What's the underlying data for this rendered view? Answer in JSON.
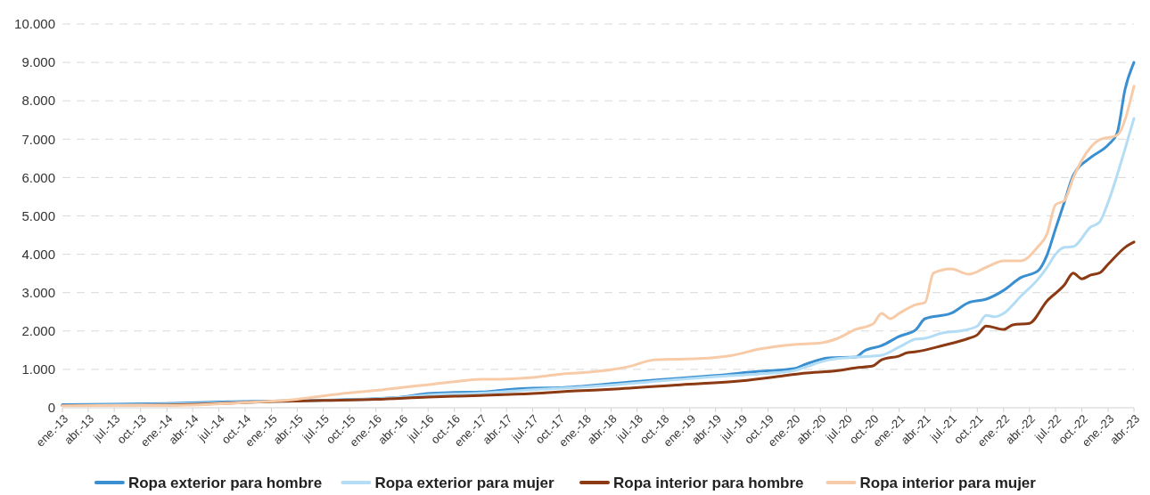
{
  "chart_data": {
    "type": "line",
    "xlim": [
      "2013-01",
      "2023-04"
    ],
    "xticks": [
      {
        "value": "2013-01",
        "label": "ene.-13"
      },
      {
        "value": "2013-04",
        "label": "abr.-13"
      },
      {
        "value": "2013-07",
        "label": "jul.-13"
      },
      {
        "value": "2013-10",
        "label": "oct.-13"
      },
      {
        "value": "2014-01",
        "label": "ene.-14"
      },
      {
        "value": "2014-04",
        "label": "abr.-14"
      },
      {
        "value": "2014-07",
        "label": "jul.-14"
      },
      {
        "value": "2014-10",
        "label": "oct.-14"
      },
      {
        "value": "2015-01",
        "label": "ene.-15"
      },
      {
        "value": "2015-04",
        "label": "abr.-15"
      },
      {
        "value": "2015-07",
        "label": "jul.-15"
      },
      {
        "value": "2015-10",
        "label": "oct.-15"
      },
      {
        "value": "2016-01",
        "label": "ene.-16"
      },
      {
        "value": "2016-04",
        "label": "abr.-16"
      },
      {
        "value": "2016-07",
        "label": "jul.-16"
      },
      {
        "value": "2016-10",
        "label": "oct.-16"
      },
      {
        "value": "2017-01",
        "label": "ene.-17"
      },
      {
        "value": "2017-04",
        "label": "abr.-17"
      },
      {
        "value": "2017-07",
        "label": "jul.-17"
      },
      {
        "value": "2017-10",
        "label": "oct.-17"
      },
      {
        "value": "2018-01",
        "label": "ene.-18"
      },
      {
        "value": "2018-04",
        "label": "abr.-18"
      },
      {
        "value": "2018-07",
        "label": "jul.-18"
      },
      {
        "value": "2018-10",
        "label": "oct.-18"
      },
      {
        "value": "2019-01",
        "label": "ene.-19"
      },
      {
        "value": "2019-04",
        "label": "abr.-19"
      },
      {
        "value": "2019-07",
        "label": "jul.-19"
      },
      {
        "value": "2019-10",
        "label": "oct.-19"
      },
      {
        "value": "2020-01",
        "label": "ene.-20"
      },
      {
        "value": "2020-04",
        "label": "abr.-20"
      },
      {
        "value": "2020-07",
        "label": "jul.-20"
      },
      {
        "value": "2020-10",
        "label": "oct.-20"
      },
      {
        "value": "2021-01",
        "label": "ene.-21"
      },
      {
        "value": "2021-04",
        "label": "abr.-21"
      },
      {
        "value": "2021-07",
        "label": "jul.-21"
      },
      {
        "value": "2021-10",
        "label": "oct.-21"
      },
      {
        "value": "2022-01",
        "label": "ene.-22"
      },
      {
        "value": "2022-04",
        "label": "abr.-22"
      },
      {
        "value": "2022-07",
        "label": "jul.-22"
      },
      {
        "value": "2022-10",
        "label": "oct.-22"
      },
      {
        "value": "2023-01",
        "label": "ene.-23"
      },
      {
        "value": "2023-04",
        "label": "abr.-23"
      }
    ],
    "ylim": [
      0,
      10000
    ],
    "yticks": [
      0,
      {
        "value": 1000,
        "label": "1.000"
      },
      {
        "value": 2000,
        "label": "2.000"
      },
      {
        "value": 3000,
        "label": "3.000"
      },
      {
        "value": 4000,
        "label": "4.000"
      },
      {
        "value": 5000,
        "label": "5.000"
      },
      {
        "value": 6000,
        "label": "6.000"
      },
      {
        "value": 7000,
        "label": "7.000"
      },
      {
        "value": 8000,
        "label": "8.000"
      },
      {
        "value": 9000,
        "label": "9.000"
      },
      {
        "value": 10000,
        "label": "10.000"
      }
    ],
    "grid": "y",
    "legend": "bottom",
    "line_style": "solid",
    "series": [
      {
        "name": "Ropa exterior para hombre",
        "color": "#3a8fd0",
        "x": [
          "2013-01",
          "2013-07",
          "2014-01",
          "2014-07",
          "2016-01",
          "2016-04",
          "2016-07",
          "2016-10",
          "2017-01",
          "2017-04",
          "2017-07",
          "2017-10",
          "2017-12",
          "2018-06",
          "2018-12",
          "2019-04",
          "2019-09",
          "2020-01",
          "2020-02",
          "2020-05",
          "2020-08",
          "2020-09",
          "2020-11",
          "2021-01",
          "2021-03",
          "2021-04",
          "2021-07",
          "2021-09",
          "2021-11",
          "2022-01",
          "2022-03",
          "2022-05",
          "2022-06",
          "2022-07",
          "2022-08",
          "2022-09",
          "2022-11",
          "2023-01",
          "2023-02",
          "2023-03",
          "2023-04"
        ],
        "values": [
          80,
          90,
          110,
          150,
          240,
          280,
          370,
          400,
          410,
          470,
          510,
          520,
          550,
          670,
          770,
          840,
          950,
          1020,
          1110,
          1300,
          1320,
          1480,
          1620,
          1860,
          2040,
          2320,
          2460,
          2740,
          2830,
          3060,
          3390,
          3570,
          3970,
          4660,
          5360,
          6050,
          6520,
          6850,
          7150,
          8300,
          9000
        ]
      },
      {
        "name": "Ropa exterior para mujer",
        "color": "#b3dcf5",
        "x": [
          "2013-01",
          "2013-07",
          "2014-01",
          "2014-07",
          "2015-07",
          "2016-01",
          "2016-04",
          "2016-07",
          "2017-01",
          "2017-07",
          "2017-12",
          "2018-12",
          "2019-04",
          "2019-09",
          "2020-01",
          "2020-02",
          "2020-05",
          "2020-08",
          "2020-11",
          "2021-01",
          "2021-03",
          "2021-04",
          "2021-06",
          "2021-08",
          "2021-10",
          "2021-11",
          "2021-12",
          "2022-01",
          "2022-03",
          "2022-05",
          "2022-06",
          "2022-07",
          "2022-08",
          "2022-09",
          "2022-11",
          "2022-12",
          "2023-01",
          "2023-03",
          "2023-04"
        ],
        "values": [
          60,
          70,
          90,
          130,
          190,
          230,
          270,
          330,
          380,
          470,
          530,
          740,
          810,
          880,
          970,
          1040,
          1250,
          1320,
          1370,
          1580,
          1790,
          1810,
          1950,
          2000,
          2130,
          2410,
          2370,
          2460,
          2900,
          3350,
          3650,
          4000,
          4180,
          4200,
          4710,
          4830,
          5360,
          6750,
          7540
        ]
      },
      {
        "name": "Ropa interior para hombre",
        "color": "#8b3a14",
        "x": [
          "2013-01",
          "2013-07",
          "2014-01",
          "2014-07",
          "2015-01",
          "2015-07",
          "2016-01",
          "2016-07",
          "2017-01",
          "2017-07",
          "2017-12",
          "2018-04",
          "2018-12",
          "2019-07",
          "2019-11",
          "2020-02",
          "2020-06",
          "2020-08",
          "2020-10",
          "2020-11",
          "2021-01",
          "2021-02",
          "2021-03",
          "2021-06",
          "2021-09",
          "2021-10",
          "2021-11",
          "2022-01",
          "2022-02",
          "2022-04",
          "2022-06",
          "2022-08",
          "2022-09",
          "2022-10",
          "2022-11",
          "2022-12",
          "2023-01",
          "2023-03",
          "2023-04"
        ],
        "values": [
          60,
          60,
          70,
          110,
          160,
          190,
          220,
          280,
          320,
          370,
          440,
          480,
          600,
          700,
          810,
          900,
          970,
          1040,
          1090,
          1250,
          1350,
          1440,
          1460,
          1620,
          1810,
          1900,
          2130,
          2040,
          2160,
          2200,
          2780,
          3200,
          3510,
          3360,
          3460,
          3510,
          3740,
          4180,
          4320
        ]
      },
      {
        "name": "Ropa interior para mujer",
        "color": "#f7cba8",
        "x": [
          "2013-01",
          "2013-07",
          "2014-01",
          "2014-04",
          "2014-10",
          "2015-04",
          "2015-07",
          "2015-10",
          "2016-01",
          "2016-04",
          "2016-07",
          "2016-10",
          "2017-01",
          "2017-04",
          "2017-07",
          "2017-10",
          "2018-01",
          "2018-04",
          "2018-06",
          "2018-09",
          "2019-02",
          "2019-06",
          "2019-09",
          "2020-01",
          "2020-04",
          "2020-06",
          "2020-08",
          "2020-10",
          "2020-11",
          "2020-12",
          "2021-01",
          "2021-03",
          "2021-04",
          "2021-05",
          "2021-07",
          "2021-09",
          "2021-11",
          "2022-01",
          "2022-03",
          "2022-05",
          "2022-06",
          "2022-07",
          "2022-08",
          "2022-09",
          "2022-10",
          "2022-12",
          "2023-02",
          "2023-04"
        ],
        "values": [
          50,
          60,
          60,
          70,
          140,
          220,
          310,
          390,
          450,
          530,
          600,
          680,
          740,
          750,
          790,
          870,
          920,
          990,
          1070,
          1250,
          1280,
          1370,
          1530,
          1650,
          1690,
          1810,
          2040,
          2180,
          2460,
          2320,
          2460,
          2690,
          2740,
          3510,
          3620,
          3480,
          3660,
          3830,
          3830,
          4200,
          4520,
          5290,
          5400,
          5990,
          6450,
          6980,
          7100,
          8380
        ]
      }
    ]
  }
}
